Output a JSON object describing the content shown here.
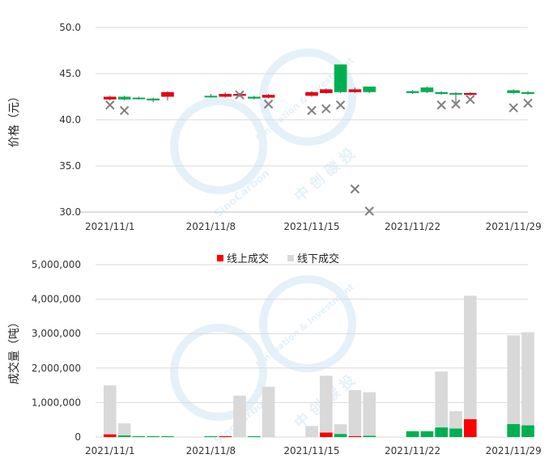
{
  "colors": {
    "up": "#e60012",
    "down": "#00b050",
    "online": "#ff0000",
    "offline": "#d9d9d9",
    "grid": "#d9d9d9",
    "marker": "#7f7f7f",
    "watermark": "#cfe6f5"
  },
  "watermark": {
    "line1": "SinoCarbon",
    "line2": "Innovation & Investment",
    "cn": "中 创 碳 投"
  },
  "chart_data": [
    {
      "type": "candlestick",
      "ylabel": "价格（元）",
      "ylim": [
        30,
        50
      ],
      "yticks": [
        "30.0",
        "35.0",
        "40.0",
        "45.0",
        "50.0"
      ],
      "ytick_values": [
        30,
        35,
        40,
        45,
        50
      ],
      "grid": true,
      "x_range": [
        "2021-10-31",
        "2021-11-30"
      ],
      "x_tick_labels": [
        "2021/11/1",
        "2021/11/8",
        "2021/11/15",
        "2021/11/22",
        "2021/11/29"
      ],
      "x_tick_dates": [
        "2021-11-01",
        "2021-11-08",
        "2021-11-15",
        "2021-11-22",
        "2021-11-29"
      ],
      "candles": [
        {
          "date": "2021-11-01",
          "open": 42.2,
          "close": 42.5,
          "high": 42.6,
          "low": 42.1
        },
        {
          "date": "2021-11-02",
          "open": 42.5,
          "close": 42.2,
          "high": 42.6,
          "low": 42.1
        },
        {
          "date": "2021-11-03",
          "open": 42.4,
          "close": 42.3,
          "high": 42.5,
          "low": 42.2
        },
        {
          "date": "2021-11-04",
          "open": 42.3,
          "close": 42.1,
          "high": 42.4,
          "low": 41.9
        },
        {
          "date": "2021-11-05",
          "open": 42.5,
          "close": 43.0,
          "high": 43.1,
          "low": 42.1
        },
        {
          "date": "2021-11-08",
          "open": 42.6,
          "close": 42.5,
          "high": 42.8,
          "low": 42.4
        },
        {
          "date": "2021-11-09",
          "open": 42.5,
          "close": 42.8,
          "high": 43.0,
          "low": 42.4
        },
        {
          "date": "2021-11-10",
          "open": 42.6,
          "close": 42.8,
          "high": 42.9,
          "low": 42.5
        },
        {
          "date": "2021-11-11",
          "open": 42.5,
          "close": 42.3,
          "high": 42.6,
          "low": 42.2
        },
        {
          "date": "2021-11-12",
          "open": 42.4,
          "close": 42.7,
          "high": 42.8,
          "low": 42.3
        },
        {
          "date": "2021-11-15",
          "open": 42.6,
          "close": 43.0,
          "high": 43.1,
          "low": 42.5
        },
        {
          "date": "2021-11-16",
          "open": 42.9,
          "close": 43.3,
          "high": 43.4,
          "low": 42.8
        },
        {
          "date": "2021-11-17",
          "open": 46.0,
          "close": 43.0,
          "high": 46.0,
          "low": 42.9
        },
        {
          "date": "2021-11-18",
          "open": 43.0,
          "close": 43.3,
          "high": 43.5,
          "low": 42.9
        },
        {
          "date": "2021-11-19",
          "open": 43.6,
          "close": 43.0,
          "high": 43.6,
          "low": 42.9
        },
        {
          "date": "2021-11-22",
          "open": 43.1,
          "close": 42.9,
          "high": 43.2,
          "low": 42.8
        },
        {
          "date": "2021-11-23",
          "open": 43.5,
          "close": 43.0,
          "high": 43.6,
          "low": 42.9
        },
        {
          "date": "2021-11-24",
          "open": 43.0,
          "close": 42.8,
          "high": 43.1,
          "low": 42.7
        },
        {
          "date": "2021-11-25",
          "open": 42.9,
          "close": 42.8,
          "high": 43.0,
          "low": 41.6
        },
        {
          "date": "2021-11-26",
          "open": 42.7,
          "close": 42.9,
          "high": 43.0,
          "low": 42.6
        },
        {
          "date": "2021-11-29",
          "open": 43.2,
          "close": 42.9,
          "high": 43.3,
          "low": 42.8
        },
        {
          "date": "2021-11-30",
          "open": 43.0,
          "close": 42.8,
          "high": 43.1,
          "low": 42.7
        }
      ],
      "offline_price_markers": [
        {
          "date": "2021-11-01",
          "value": 41.6
        },
        {
          "date": "2021-11-02",
          "value": 41.0
        },
        {
          "date": "2021-11-10",
          "value": 42.7
        },
        {
          "date": "2021-11-12",
          "value": 41.7
        },
        {
          "date": "2021-11-15",
          "value": 41.0
        },
        {
          "date": "2021-11-16",
          "value": 41.2
        },
        {
          "date": "2021-11-17",
          "value": 41.6
        },
        {
          "date": "2021-11-18",
          "value": 32.5
        },
        {
          "date": "2021-11-19",
          "value": 30.1
        },
        {
          "date": "2021-11-24",
          "value": 41.6
        },
        {
          "date": "2021-11-25",
          "value": 41.7
        },
        {
          "date": "2021-11-26",
          "value": 42.2
        },
        {
          "date": "2021-11-29",
          "value": 41.3
        },
        {
          "date": "2021-11-30",
          "value": 41.8
        }
      ]
    },
    {
      "type": "stacked-bar",
      "ylabel": "成交量（吨）",
      "ylim": [
        0,
        5000000
      ],
      "yticks": [
        "0",
        "1,000,000",
        "2,000,000",
        "3,000,000",
        "4,000,000",
        "5,000,000"
      ],
      "ytick_values": [
        0,
        1000000,
        2000000,
        3000000,
        4000000,
        5000000
      ],
      "grid": true,
      "legend_position": "top-center",
      "legend": [
        "线上成交",
        "线下成交"
      ],
      "x_range": [
        "2021-10-31",
        "2021-11-30"
      ],
      "x_tick_labels": [
        "2021/11/1",
        "2021/11/8",
        "2021/11/15",
        "2021/11/22",
        "2021/11/29"
      ],
      "x_tick_dates": [
        "2021-11-01",
        "2021-11-08",
        "2021-11-15",
        "2021-11-22",
        "2021-11-29"
      ],
      "bars": [
        {
          "date": "2021-11-01",
          "online": 80000,
          "online_dir": "up",
          "offline": 1420000
        },
        {
          "date": "2021-11-02",
          "online": 50000,
          "online_dir": "down",
          "offline": 350000
        },
        {
          "date": "2021-11-03",
          "online": 25000,
          "online_dir": "down",
          "offline": 0
        },
        {
          "date": "2021-11-04",
          "online": 25000,
          "online_dir": "down",
          "offline": 0
        },
        {
          "date": "2021-11-05",
          "online": 25000,
          "online_dir": "down",
          "offline": 0
        },
        {
          "date": "2021-11-08",
          "online": 25000,
          "online_dir": "down",
          "offline": 0
        },
        {
          "date": "2021-11-09",
          "online": 25000,
          "online_dir": "up",
          "offline": 0
        },
        {
          "date": "2021-11-10",
          "online": 0,
          "online_dir": "up",
          "offline": 1200000
        },
        {
          "date": "2021-11-11",
          "online": 25000,
          "online_dir": "down",
          "offline": 0
        },
        {
          "date": "2021-11-12",
          "online": 0,
          "online_dir": "up",
          "offline": 1460000
        },
        {
          "date": "2021-11-15",
          "online": 0,
          "online_dir": "up",
          "offline": 320000
        },
        {
          "date": "2021-11-16",
          "online": 130000,
          "online_dir": "up",
          "offline": 1650000
        },
        {
          "date": "2021-11-17",
          "online": 90000,
          "online_dir": "down",
          "offline": 280000
        },
        {
          "date": "2021-11-18",
          "online": 30000,
          "online_dir": "up",
          "offline": 1330000
        },
        {
          "date": "2021-11-19",
          "online": 40000,
          "online_dir": "down",
          "offline": 1260000
        },
        {
          "date": "2021-11-22",
          "online": 170000,
          "online_dir": "down",
          "offline": 0
        },
        {
          "date": "2021-11-23",
          "online": 170000,
          "online_dir": "down",
          "offline": 0
        },
        {
          "date": "2021-11-24",
          "online": 280000,
          "online_dir": "down",
          "offline": 1620000
        },
        {
          "date": "2021-11-25",
          "online": 250000,
          "online_dir": "down",
          "offline": 500000
        },
        {
          "date": "2021-11-26",
          "online": 520000,
          "online_dir": "up",
          "offline": 3580000
        },
        {
          "date": "2021-11-29",
          "online": 380000,
          "online_dir": "down",
          "offline": 2570000
        },
        {
          "date": "2021-11-30",
          "online": 340000,
          "online_dir": "down",
          "offline": 2700000
        }
      ]
    }
  ]
}
